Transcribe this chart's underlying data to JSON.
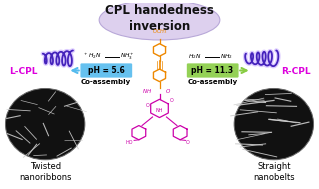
{
  "title": "CPL handedness\ninversion",
  "title_fontsize": 8.5,
  "title_color": "#111111",
  "ellipse_color": "#ddd0ee",
  "ellipse_edge": "#b8a8d8",
  "lcpl_label": "L-CPL",
  "rcpl_label": "R-CPL",
  "cpl_color": "#dd00dd",
  "coil_color": "#4422bb",
  "coil_glow": "#bb99ff",
  "left_arrow_color": "#55bbee",
  "right_arrow_color": "#88cc44",
  "left_pH": "pH = 5.6",
  "right_pH": "pH = 11.3",
  "coassembly": "Co-assembly",
  "left_label1": "Twisted",
  "left_label2": "nanoribbons",
  "right_label1": "Straight",
  "right_label2": "nanobelts",
  "orange_color": "#ee8800",
  "magenta_color": "#cc00aa",
  "bg_color": "#ffffff",
  "label_fontsize": 6.0,
  "pH_fontsize": 5.5,
  "coassembly_fontsize": 5.0
}
